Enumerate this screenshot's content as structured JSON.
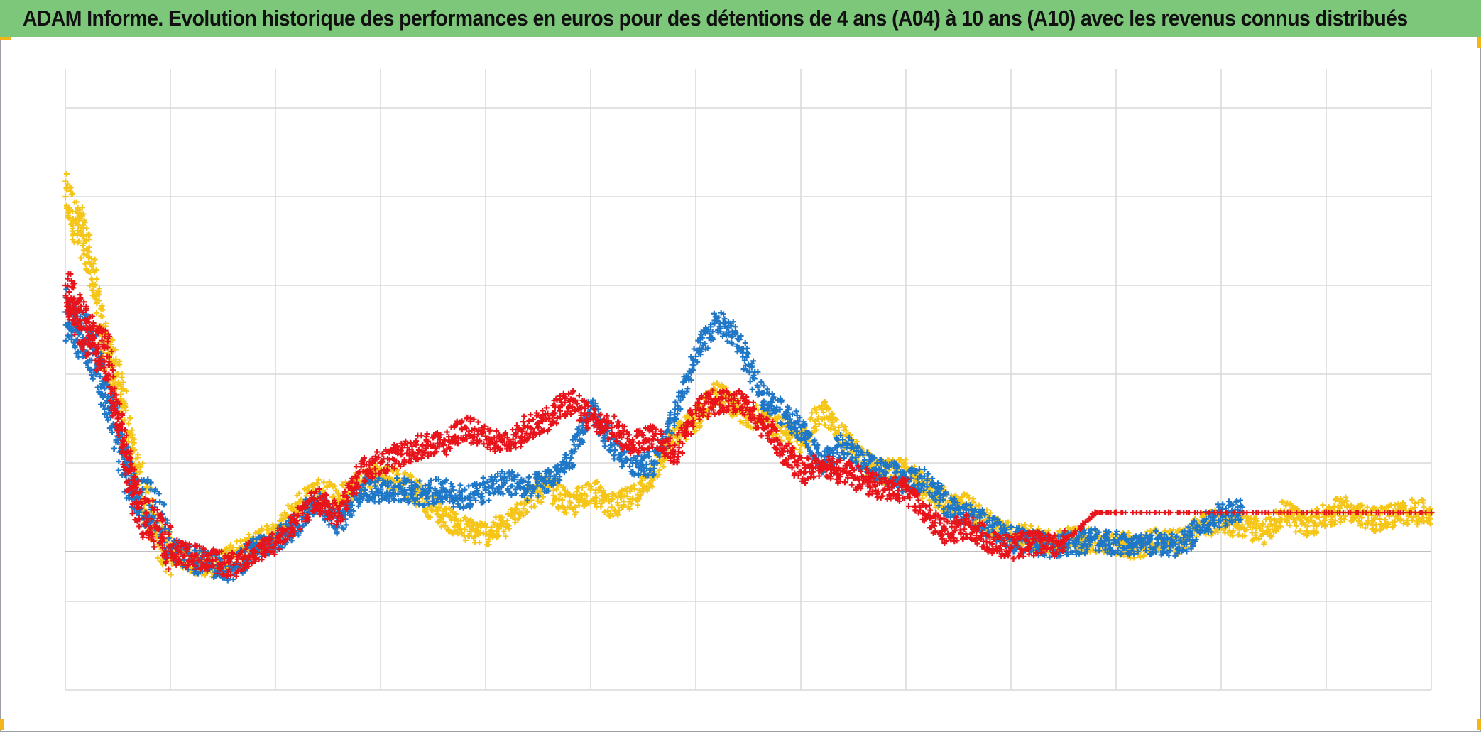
{
  "title": "ADAM Informe. Evolution historique des performances en euros pour des détentions de 4 ans (A04) à 10 ans (A10) avec les revenus connus distribués",
  "colors": {
    "title_bar": "#7dc77b",
    "corner_marks": "#f2b619",
    "grid": "#d9d9d9",
    "baseline": "#bfbfbf"
  },
  "chart_data": {
    "type": "scatter",
    "marker": "plus",
    "title": "ADAM Informe. Evolution historique des performances en euros pour des détentions de 4 ans (A04) à 10 ans (A10) avec les revenus connus distribués",
    "xlabel": "",
    "ylabel": "",
    "xlim": [
      0,
      13
    ],
    "ylim": [
      -1.56,
      5.44
    ],
    "x_gridlines": [
      0,
      1,
      2,
      3,
      4,
      5,
      6,
      7,
      8,
      9,
      10,
      11,
      12,
      13
    ],
    "y_gridlines": [
      -1.56,
      -0.56,
      0,
      1,
      2,
      3,
      4,
      5
    ],
    "grid": true,
    "legend": "none",
    "series": [
      {
        "name": "yellow",
        "color": "#f5c518",
        "x": [
          0.0,
          0.1,
          0.2,
          0.3,
          0.4,
          0.5,
          0.6,
          0.7,
          0.85,
          1.0,
          1.2,
          1.4,
          1.6,
          1.8,
          2.0,
          2.2,
          2.4,
          2.6,
          2.8,
          3.0,
          3.2,
          3.4,
          3.6,
          3.8,
          4.0,
          4.2,
          4.4,
          4.6,
          4.8,
          5.0,
          5.2,
          5.4,
          5.6,
          5.8,
          6.0,
          6.2,
          6.4,
          6.6,
          6.8,
          7.0,
          7.2,
          7.4,
          7.6,
          7.8,
          8.0,
          8.2,
          8.4,
          8.6,
          8.8,
          9.0,
          9.2,
          9.4,
          9.6,
          9.8,
          10.0,
          10.2,
          10.4,
          10.6,
          10.8,
          11.0,
          11.2,
          11.4,
          11.6,
          11.8,
          12.0,
          12.2,
          12.4,
          12.6,
          12.8,
          13.0
        ],
        "y": [
          4.0,
          3.7,
          3.5,
          2.8,
          2.2,
          2.0,
          1.3,
          0.8,
          0.2,
          0.0,
          -0.1,
          -0.15,
          -0.05,
          0.1,
          0.2,
          0.5,
          0.7,
          0.6,
          0.8,
          0.9,
          0.8,
          0.6,
          0.4,
          0.25,
          0.2,
          0.3,
          0.6,
          0.75,
          0.5,
          0.7,
          0.5,
          0.6,
          0.9,
          1.3,
          1.5,
          1.8,
          1.6,
          1.5,
          1.4,
          1.2,
          1.6,
          1.3,
          1.0,
          0.9,
          0.9,
          0.7,
          0.55,
          0.5,
          0.3,
          0.2,
          0.15,
          0.1,
          0.15,
          0.1,
          0.1,
          0.05,
          0.15,
          0.1,
          0.3,
          0.35,
          0.3,
          0.2,
          0.45,
          0.3,
          0.4,
          0.5,
          0.35,
          0.4,
          0.45,
          0.44
        ]
      },
      {
        "name": "blue",
        "color": "#1f77c7",
        "x": [
          0.0,
          0.1,
          0.2,
          0.3,
          0.4,
          0.5,
          0.6,
          0.7,
          0.85,
          1.0,
          1.2,
          1.4,
          1.6,
          1.8,
          2.0,
          2.2,
          2.4,
          2.6,
          2.8,
          3.0,
          3.2,
          3.4,
          3.6,
          3.8,
          4.0,
          4.2,
          4.4,
          4.6,
          4.8,
          5.0,
          5.2,
          5.4,
          5.6,
          5.8,
          6.0,
          6.2,
          6.4,
          6.6,
          6.8,
          7.0,
          7.2,
          7.4,
          7.6,
          7.8,
          8.0,
          8.2,
          8.4,
          8.6,
          8.8,
          9.0,
          9.2,
          9.4,
          9.6,
          9.8,
          10.0,
          10.2,
          10.4,
          10.6,
          10.8,
          11.0,
          11.2
        ],
        "y": [
          2.7,
          2.5,
          2.4,
          2.1,
          1.7,
          1.3,
          0.8,
          0.6,
          0.5,
          0.05,
          -0.1,
          -0.15,
          -0.2,
          0.05,
          0.1,
          0.3,
          0.6,
          0.3,
          0.7,
          0.7,
          0.7,
          0.65,
          0.7,
          0.6,
          0.7,
          0.8,
          0.7,
          0.8,
          1.0,
          1.6,
          1.2,
          1.0,
          1.0,
          1.5,
          2.2,
          2.6,
          2.4,
          1.8,
          1.6,
          1.4,
          1.0,
          1.2,
          1.0,
          0.9,
          0.8,
          0.8,
          0.5,
          0.4,
          0.3,
          0.15,
          0.1,
          0.05,
          0.1,
          0.15,
          0.1,
          0.05,
          0.1,
          0.05,
          0.25,
          0.42,
          0.5
        ]
      },
      {
        "name": "red",
        "color": "#e8141b",
        "x": [
          0.0,
          0.1,
          0.2,
          0.3,
          0.4,
          0.5,
          0.6,
          0.7,
          0.85,
          1.0,
          1.2,
          1.4,
          1.6,
          1.8,
          2.0,
          2.2,
          2.4,
          2.6,
          2.8,
          3.0,
          3.2,
          3.4,
          3.6,
          3.8,
          4.0,
          4.2,
          4.4,
          4.6,
          4.8,
          5.0,
          5.2,
          5.4,
          5.6,
          5.8,
          6.0,
          6.2,
          6.4,
          6.6,
          6.8,
          7.0,
          7.2,
          7.4,
          7.6,
          7.8,
          8.0,
          8.2,
          8.4,
          8.6,
          8.8,
          9.0,
          9.2,
          9.4,
          9.6,
          9.8,
          10.0,
          10.5,
          11.0,
          11.5,
          12.0,
          12.5,
          13.0
        ],
        "y": [
          3.0,
          2.7,
          2.5,
          2.3,
          2.2,
          1.5,
          0.9,
          0.5,
          0.3,
          0.0,
          -0.05,
          -0.1,
          -0.15,
          0.0,
          0.1,
          0.35,
          0.6,
          0.4,
          0.9,
          1.0,
          1.1,
          1.2,
          1.2,
          1.4,
          1.3,
          1.2,
          1.4,
          1.5,
          1.7,
          1.5,
          1.4,
          1.2,
          1.3,
          1.1,
          1.6,
          1.7,
          1.7,
          1.5,
          1.2,
          0.9,
          1.0,
          0.9,
          0.8,
          0.7,
          0.7,
          0.4,
          0.2,
          0.3,
          0.1,
          0.05,
          0.1,
          0.05,
          0.2,
          0.44,
          0.44,
          0.44,
          0.44,
          0.44,
          0.44,
          0.44,
          0.44
        ]
      }
    ]
  }
}
